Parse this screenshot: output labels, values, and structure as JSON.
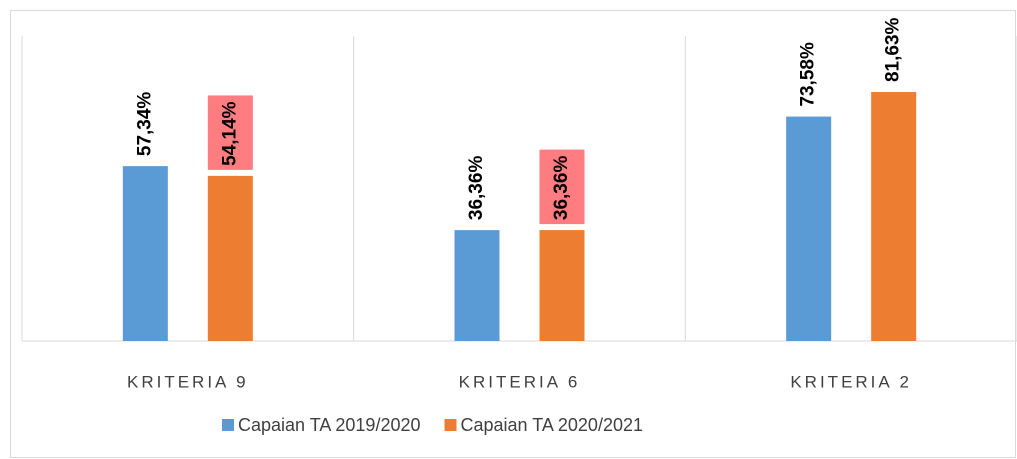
{
  "chart_data": {
    "type": "bar",
    "categories": [
      "KRITERIA 9",
      "KRITERIA 6",
      "KRITERIA 2"
    ],
    "series": [
      {
        "name": "Capaian TA 2019/2020",
        "color": "#5b9bd5",
        "values": [
          57.34,
          36.36,
          73.58
        ],
        "value_labels": [
          "57,34%",
          "36,36%",
          "73,58%"
        ]
      },
      {
        "name": "Capaian TA 2020/2021",
        "color": "#ed7d31",
        "values": [
          54.14,
          36.36,
          81.63
        ],
        "value_labels": [
          "54,14%",
          "36,36%",
          "81,63%"
        ],
        "value_label_colors": [
          "#ff7c80",
          "#ff7c80",
          null
        ]
      }
    ],
    "ylim": [
      0,
      100
    ],
    "legend": "bottom"
  }
}
